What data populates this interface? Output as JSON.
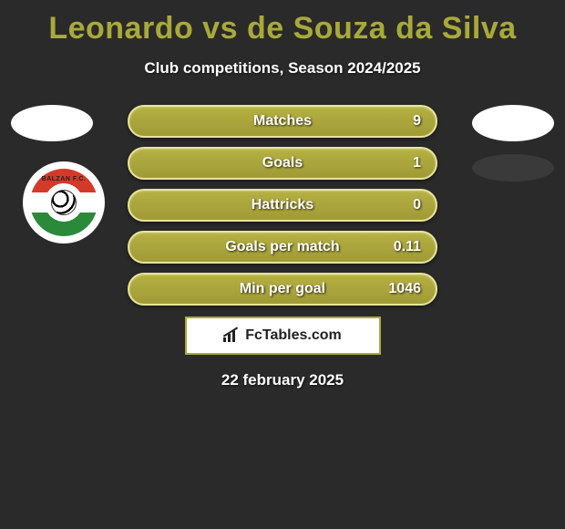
{
  "title": "Leonardo vs de Souza da Silva",
  "subtitle": "Club competitions, Season 2024/2025",
  "club_logo": {
    "text": "BALZAN F.C."
  },
  "stats": {
    "type": "infographic",
    "row_bg_gradient": [
      "#b5b142",
      "#a09a36"
    ],
    "row_border_color": "#e8e49a",
    "text_color": "#ffffff",
    "label_fontsize": 16,
    "value_fontsize": 16,
    "rows": [
      {
        "label": "Matches",
        "value": "9"
      },
      {
        "label": "Goals",
        "value": "1"
      },
      {
        "label": "Hattricks",
        "value": "0"
      },
      {
        "label": "Goals per match",
        "value": "0.11"
      },
      {
        "label": "Min per goal",
        "value": "1046"
      }
    ]
  },
  "brand": "FcTables.com",
  "date": "22 february 2025",
  "colors": {
    "background": "#2a2a2a",
    "accent": "#a9a93a",
    "title_color": "#a9a93a",
    "text_light": "#ffffff"
  }
}
